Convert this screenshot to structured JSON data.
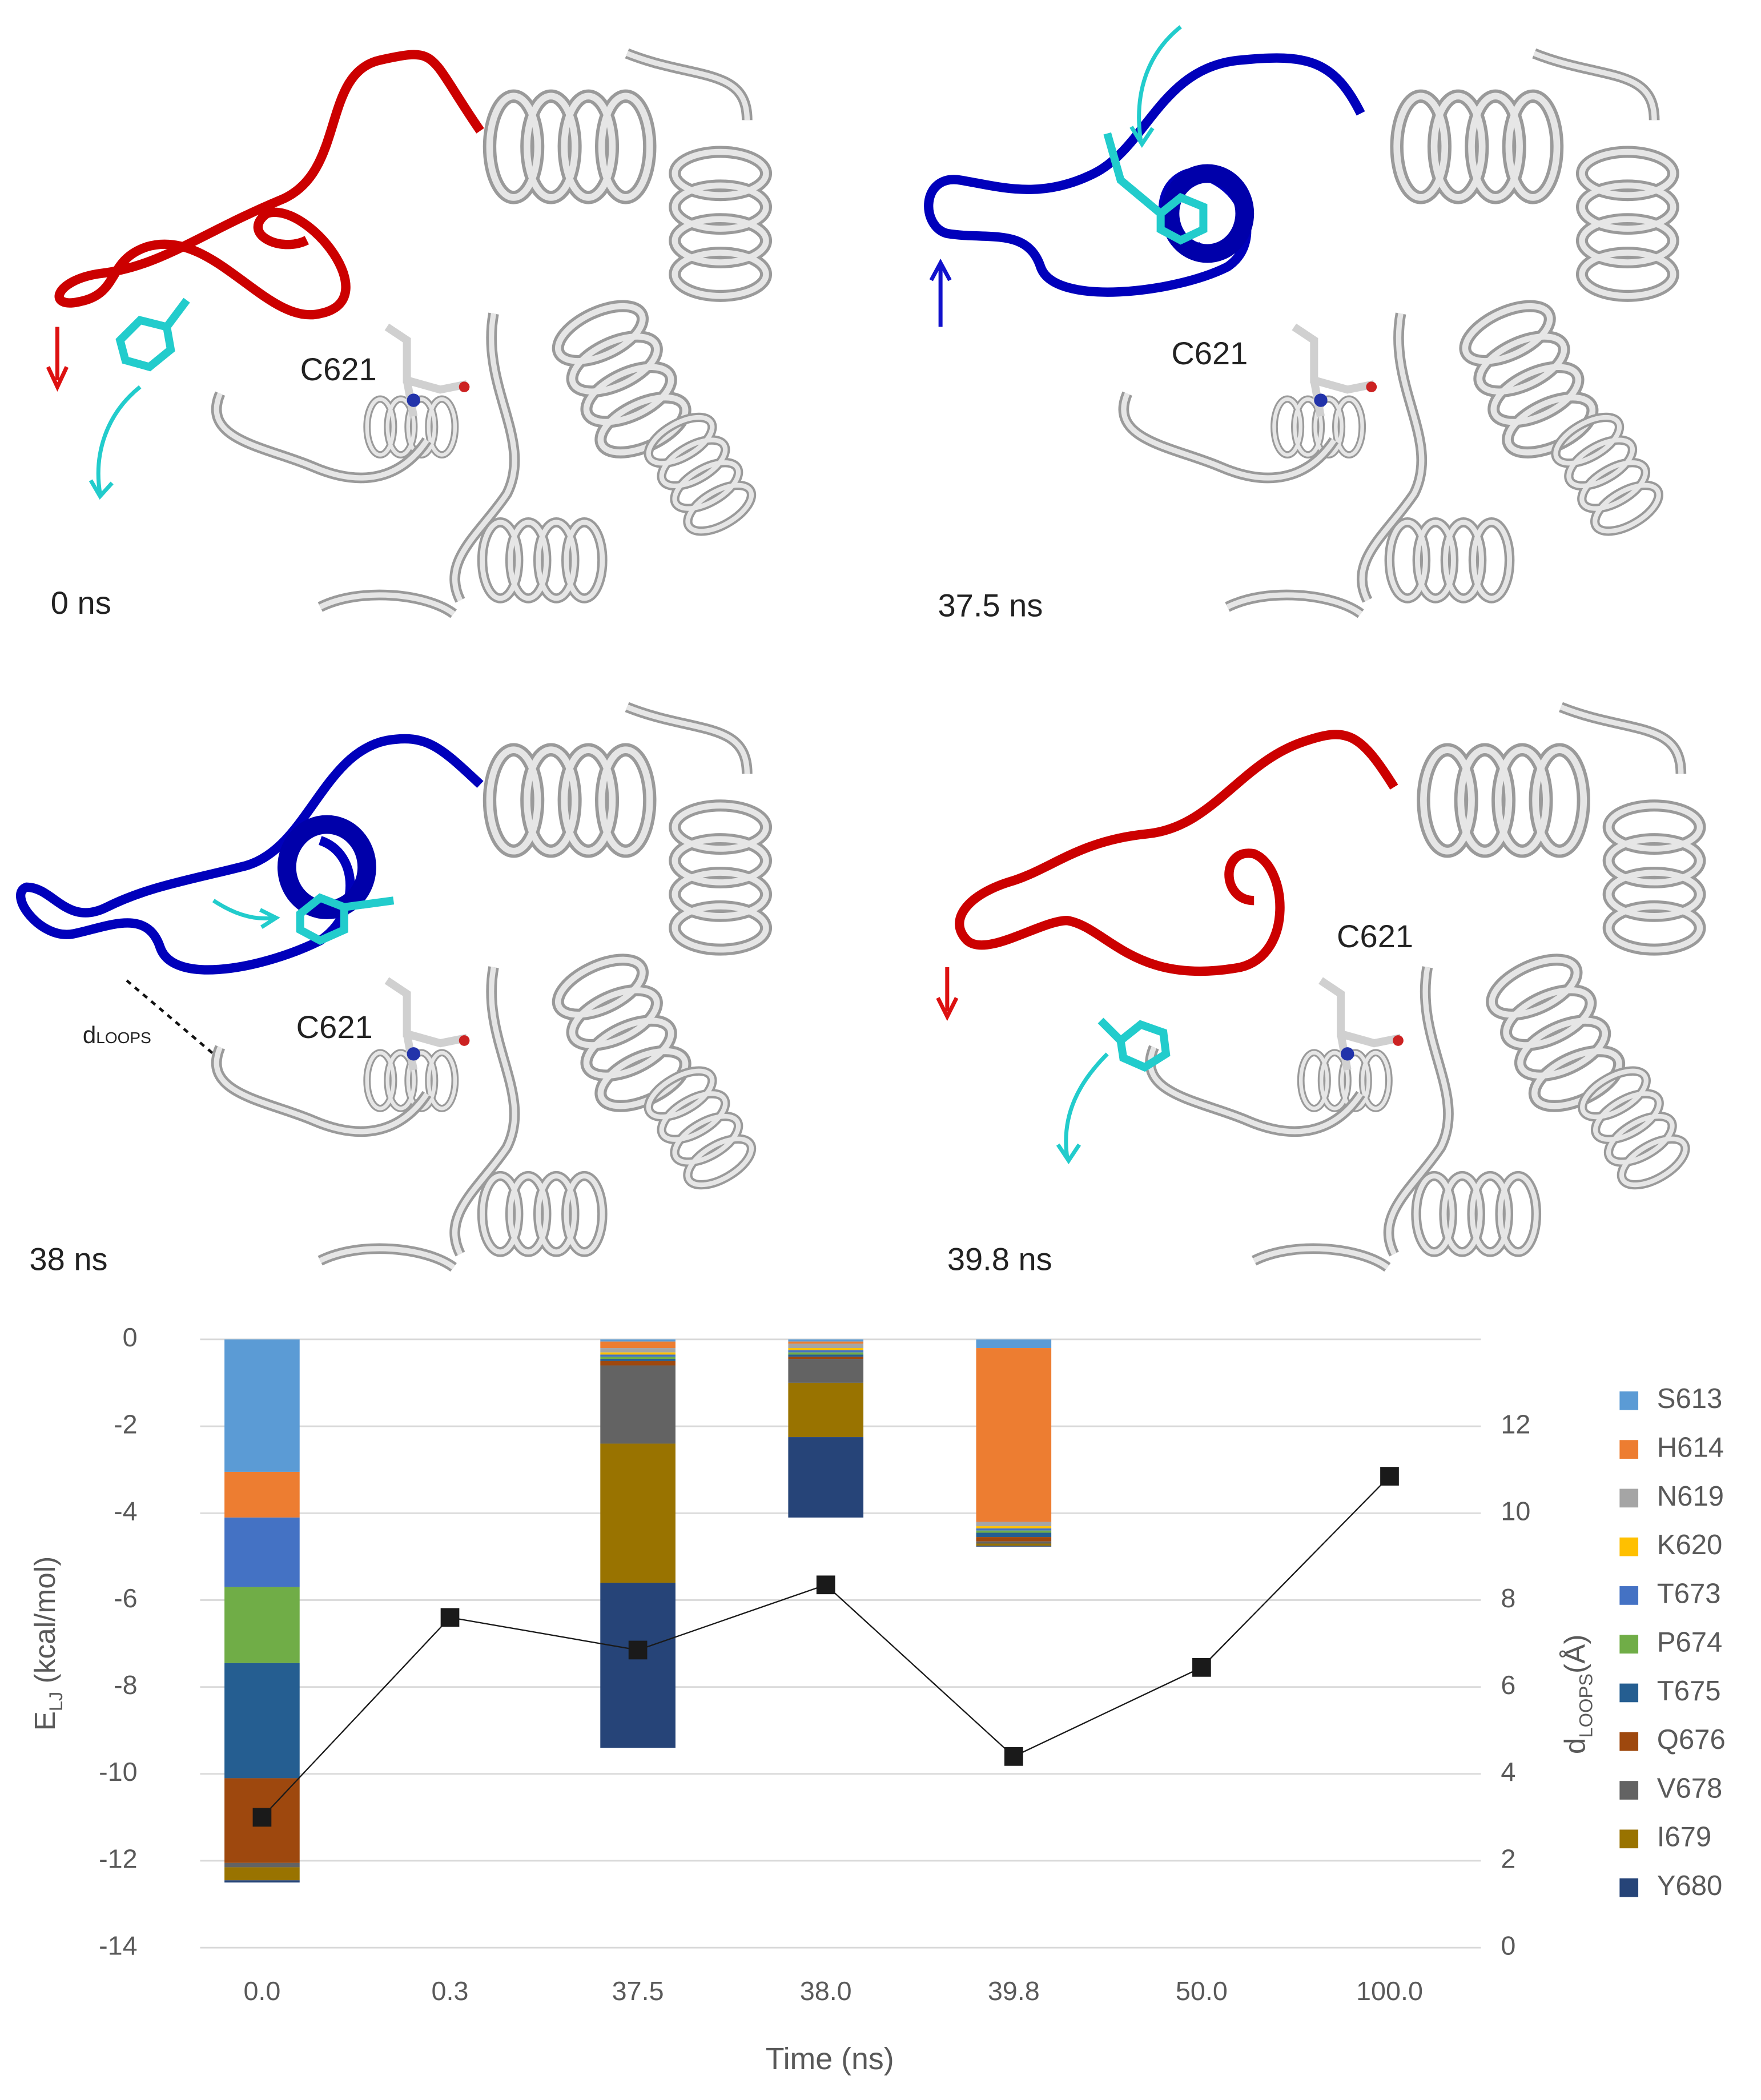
{
  "panels": [
    {
      "time": "0 ns",
      "residue": "C621"
    },
    {
      "time": "37.5 ns",
      "residue": "C621"
    },
    {
      "time": "38 ns",
      "residue": "C621"
    },
    {
      "time": "39.8 ns",
      "residue": "C621"
    }
  ],
  "distance_label": {
    "symbol": "d",
    "subscript": "LOOPS"
  },
  "chart_data": {
    "type": "bar",
    "stacked": true,
    "xlabel": "Time (ns)",
    "ylabel": {
      "main": "E",
      "sub": "LJ",
      "rest": " (kcal/mol)"
    },
    "y2label": {
      "main": "d",
      "sub": "LOOPS",
      "rest": "(Å)"
    },
    "categories": [
      "0.0",
      "0.3",
      "37.5",
      "38.0",
      "39.8",
      "50.0",
      "100.0"
    ],
    "ylim": [
      -14,
      0
    ],
    "yticks": [
      0,
      -2,
      -4,
      -6,
      -8,
      -10,
      -12,
      -14
    ],
    "y2lim": [
      0,
      14
    ],
    "y2ticks": [
      0,
      2,
      4,
      6,
      8,
      10,
      12
    ],
    "grid": true,
    "legend": "right",
    "series": [
      {
        "name": "S613",
        "color": "#5b9bd5",
        "values": [
          -3.05,
          null,
          -0.05,
          -0.05,
          -0.2,
          null,
          null
        ]
      },
      {
        "name": "H614",
        "color": "#ed7d31",
        "values": [
          -1.05,
          null,
          -0.15,
          -0.05,
          -4.0,
          null,
          null
        ]
      },
      {
        "name": "N619",
        "color": "#a5a5a5",
        "values": [
          0,
          null,
          -0.1,
          -0.1,
          -0.1,
          null,
          null
        ]
      },
      {
        "name": "K620",
        "color": "#ffc000",
        "values": [
          0,
          null,
          -0.05,
          -0.05,
          -0.05,
          null,
          null
        ]
      },
      {
        "name": "T673",
        "color": "#4472c4",
        "values": [
          -1.6,
          null,
          -0.05,
          -0.05,
          -0.05,
          null,
          null
        ]
      },
      {
        "name": "P674",
        "color": "#70ad47",
        "values": [
          -1.75,
          null,
          -0.05,
          -0.05,
          -0.05,
          null,
          null
        ]
      },
      {
        "name": "T675",
        "color": "#255e91",
        "values": [
          -2.65,
          null,
          -0.05,
          -0.05,
          -0.1,
          null,
          null
        ]
      },
      {
        "name": "Q676",
        "color": "#9e480e",
        "values": [
          -1.95,
          null,
          -0.1,
          -0.05,
          -0.1,
          null,
          null
        ]
      },
      {
        "name": "V678",
        "color": "#636363",
        "values": [
          -0.1,
          null,
          -1.8,
          -0.55,
          -0.05,
          null,
          null
        ]
      },
      {
        "name": "I679",
        "color": "#997300",
        "values": [
          -0.3,
          null,
          -3.2,
          -1.25,
          -0.05,
          null,
          null
        ]
      },
      {
        "name": "Y680",
        "color": "#264478",
        "values": [
          -0.05,
          null,
          -3.8,
          -1.85,
          -0.02,
          null,
          null
        ]
      },
      {
        "type": "line",
        "axis": "y2",
        "color": "#1a1a1a",
        "values": [
          3.0,
          7.6,
          6.85,
          8.35,
          4.4,
          6.45,
          10.85
        ]
      }
    ]
  }
}
